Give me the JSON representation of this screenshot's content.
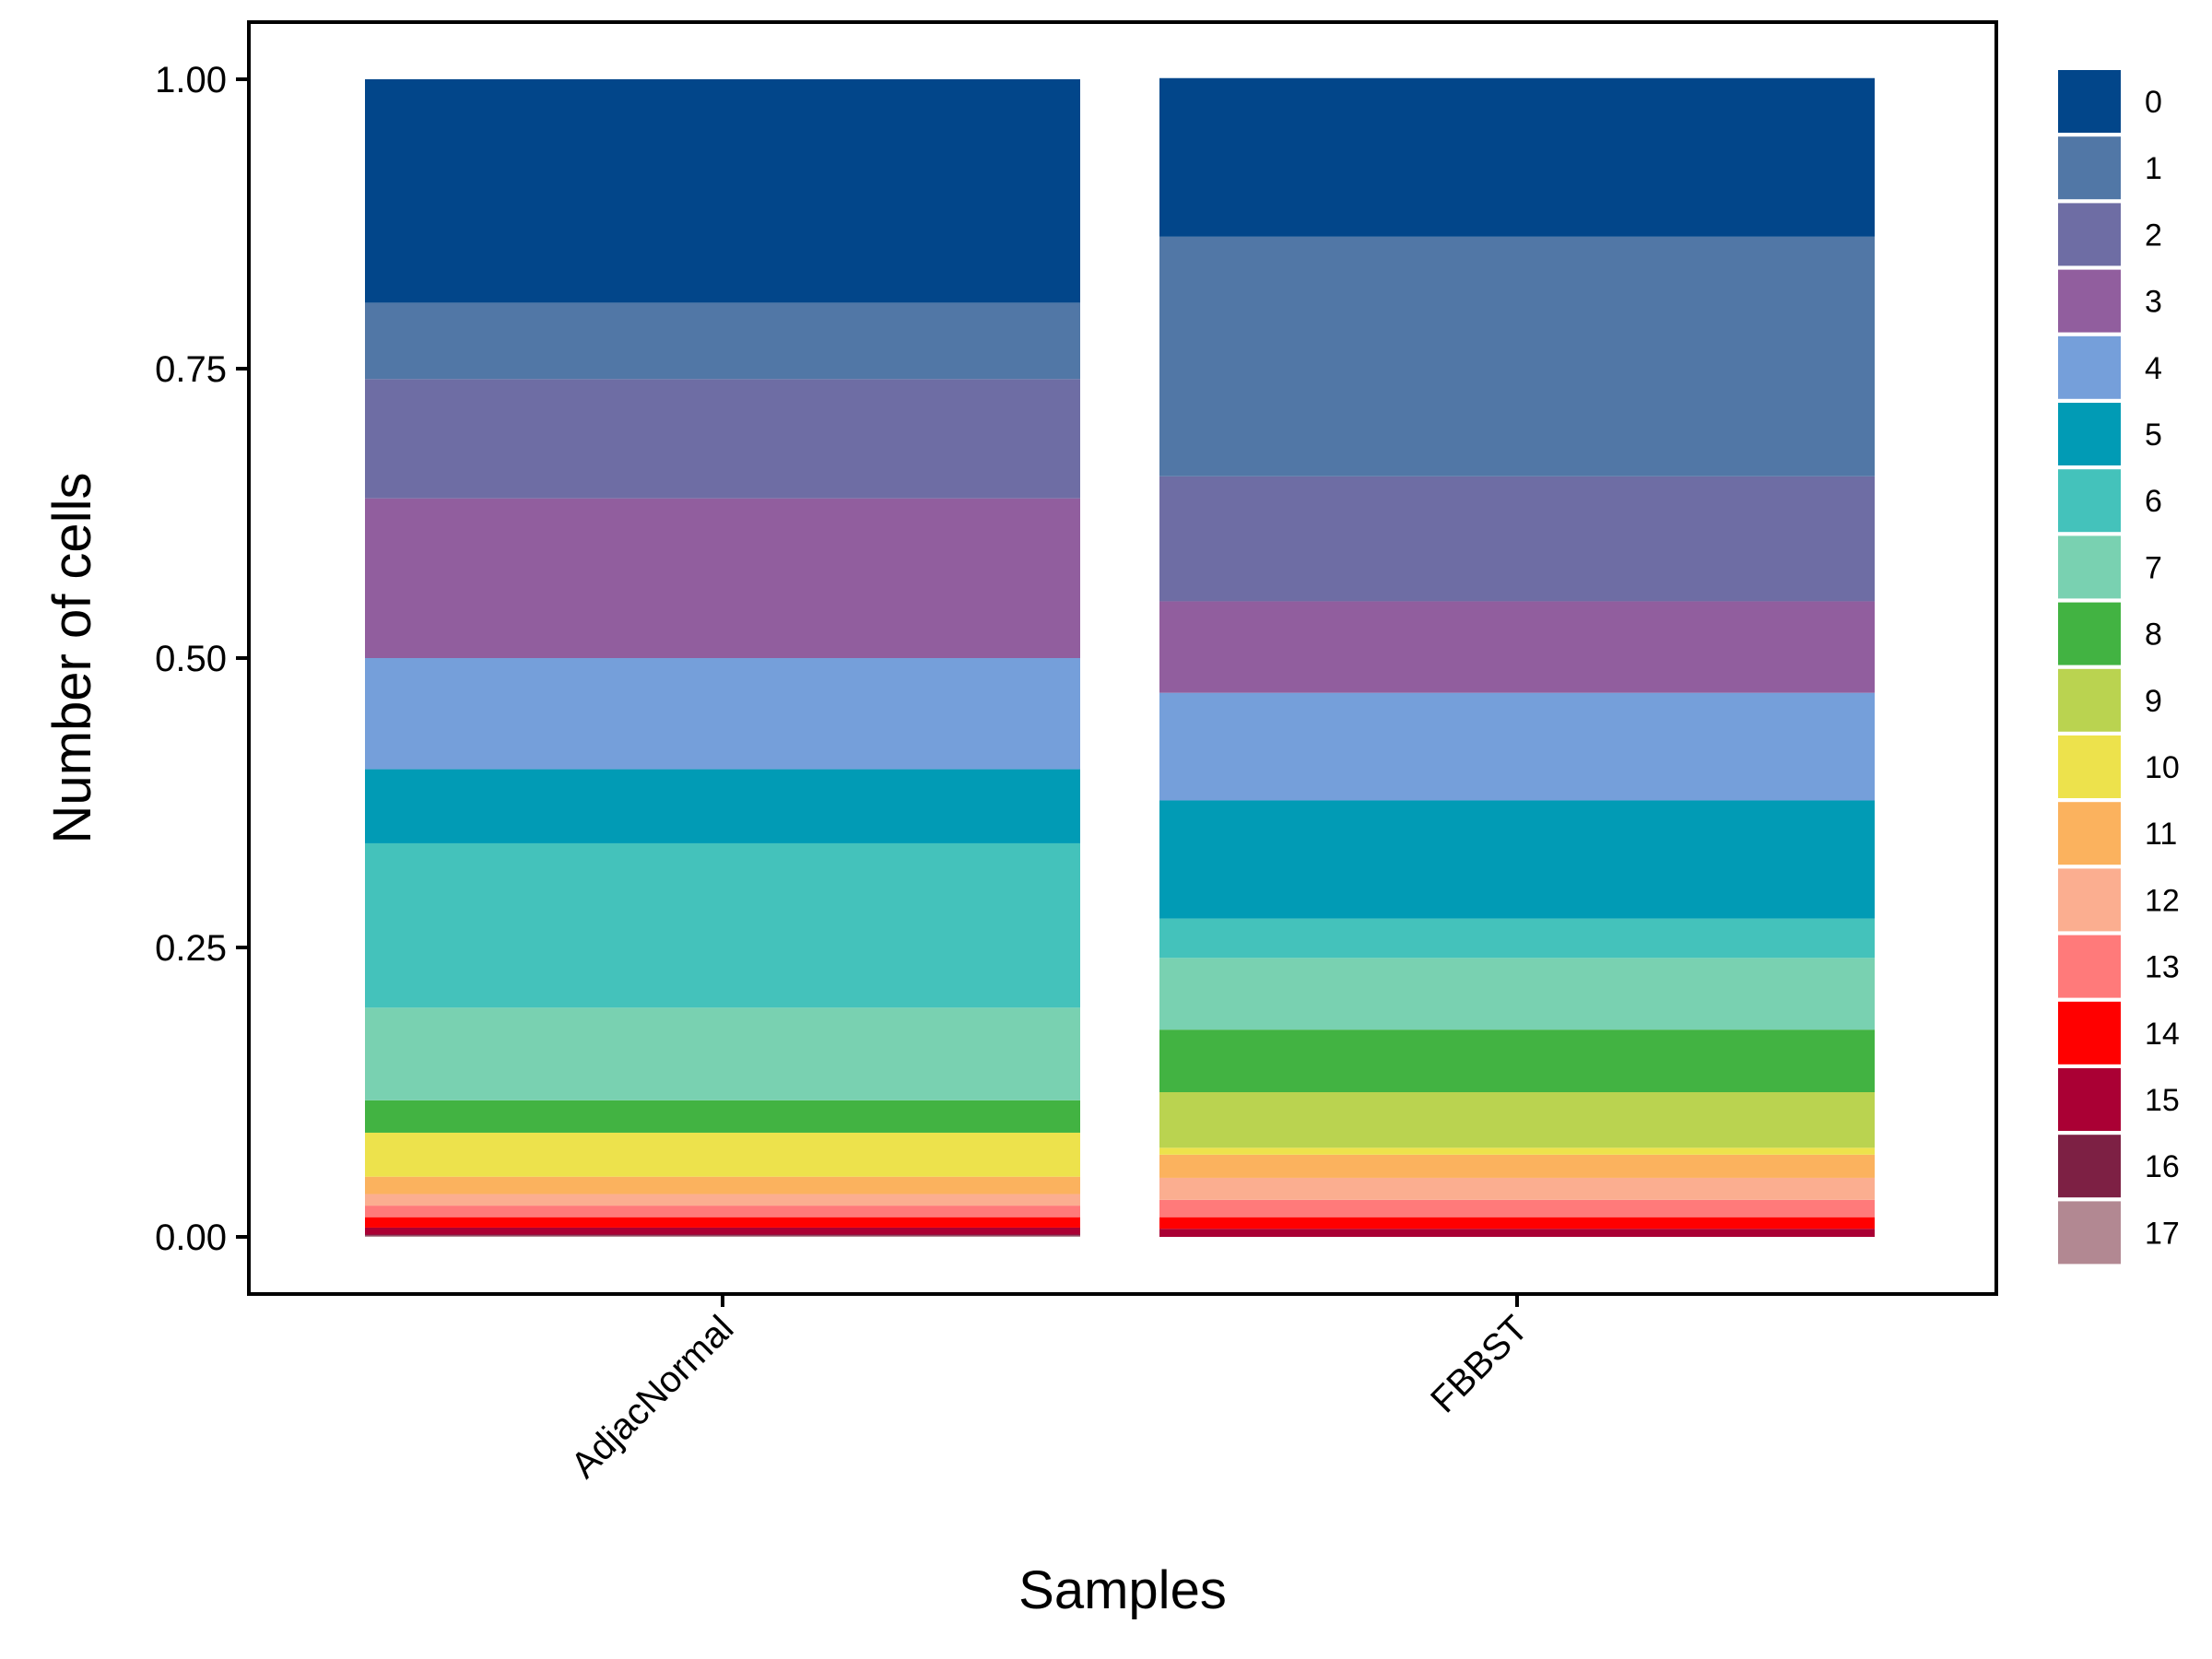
{
  "chart_data": {
    "type": "bar",
    "stacked": true,
    "xlabel": "Samples",
    "ylabel": "Number of cells",
    "ylim": [
      0,
      1
    ],
    "yticks": [
      "0.00",
      "0.25",
      "0.50",
      "0.75",
      "1.00"
    ],
    "ytick_values": [
      0,
      0.25,
      0.5,
      0.75,
      1.0
    ],
    "categories": [
      "AdjacNormal",
      "FBBST"
    ],
    "legend_position": "right",
    "series": [
      {
        "name": "0",
        "color": "#02468A",
        "values": [
          0.193,
          0.137
        ]
      },
      {
        "name": "1",
        "color": "#5177A6",
        "values": [
          0.066,
          0.207
        ]
      },
      {
        "name": "2",
        "color": "#6E6DA4",
        "values": [
          0.103,
          0.108
        ]
      },
      {
        "name": "3",
        "color": "#915E9E",
        "values": [
          0.138,
          0.079
        ]
      },
      {
        "name": "4",
        "color": "#759FDA",
        "values": [
          0.096,
          0.093
        ]
      },
      {
        "name": "5",
        "color": "#019BB5",
        "values": [
          0.064,
          0.102
        ]
      },
      {
        "name": "6",
        "color": "#44C2BB",
        "values": [
          0.142,
          0.034
        ]
      },
      {
        "name": "7",
        "color": "#79D1B1",
        "values": [
          0.08,
          0.062
        ]
      },
      {
        "name": "8",
        "color": "#42B342",
        "values": [
          0.028,
          0.054
        ]
      },
      {
        "name": "9",
        "color": "#BAD350",
        "values": [
          0.0,
          0.048
        ]
      },
      {
        "name": "10",
        "color": "#EDE24C",
        "values": [
          0.038,
          0.006
        ]
      },
      {
        "name": "11",
        "color": "#FBB25E",
        "values": [
          0.015,
          0.02
        ]
      },
      {
        "name": "12",
        "color": "#FBAE90",
        "values": [
          0.01,
          0.019
        ]
      },
      {
        "name": "13",
        "color": "#FF7A7A",
        "values": [
          0.01,
          0.015
        ]
      },
      {
        "name": "14",
        "color": "#FF0000",
        "values": [
          0.009,
          0.01
        ]
      },
      {
        "name": "15",
        "color": "#AA0034",
        "values": [
          0.006,
          0.007
        ]
      },
      {
        "name": "16",
        "color": "#7D2044",
        "values": [
          0.001,
          0.0
        ]
      },
      {
        "name": "17",
        "color": "#B28892",
        "values": [
          0.001,
          0.0
        ]
      }
    ]
  }
}
